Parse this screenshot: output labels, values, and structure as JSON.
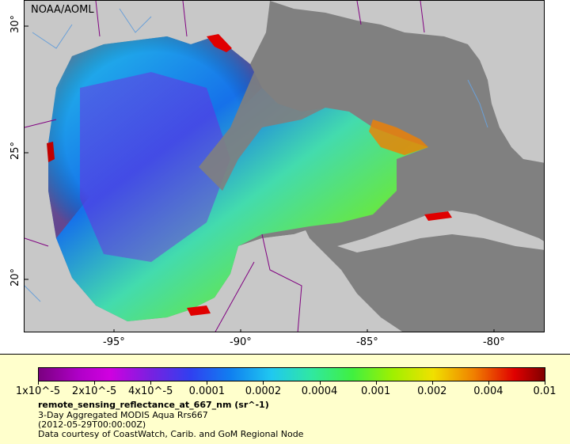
{
  "map": {
    "credit": "NOAA/AOML",
    "lat_ticks": [
      "30°",
      "25°",
      "20°"
    ],
    "lon_ticks": [
      "-95°",
      "-90°",
      "-85°",
      "-80°"
    ],
    "colors": {
      "land": "#c8c8c8",
      "no_data": "#808080",
      "border": "#800080",
      "river": "#6aa0d8"
    }
  },
  "legend": {
    "ticks": [
      "1x10^-5",
      "2x10^-5",
      "4x10^-5",
      "0.0001",
      "0.0002",
      "0.0004",
      "0.001",
      "0.002",
      "0.004",
      "0.01"
    ],
    "variable": "remote_sensing_reflectance_at_667_nm (sr^-1)",
    "dataset": "3-Day Aggregated MODIS Aqua Rrs667",
    "date": "(2012-05-29T00:00:00Z)",
    "courtesy": "Data courtesy of CoastWatch, Carib. and GoM Regional Node"
  }
}
